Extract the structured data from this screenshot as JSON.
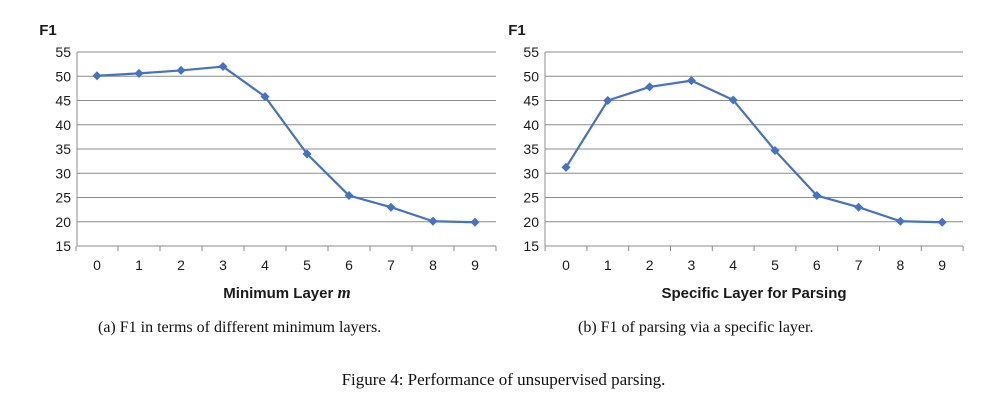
{
  "chart_data": [
    {
      "type": "line",
      "ylabel": "F1",
      "xlabel": "Minimum Layer",
      "xlabel_var": "m",
      "ylim": [
        15,
        55
      ],
      "yticks": [
        15,
        20,
        25,
        30,
        35,
        40,
        45,
        50,
        55
      ],
      "x": [
        0,
        1,
        2,
        3,
        4,
        5,
        6,
        7,
        8,
        9
      ],
      "series": [
        {
          "values": [
            50.1,
            50.6,
            51.2,
            52.0,
            45.8,
            34.0,
            25.4,
            23.0,
            20.1,
            19.9
          ]
        }
      ],
      "grid": true,
      "color": "#4472c4",
      "caption": "(a) F1 in terms of different minimum layers."
    },
    {
      "type": "line",
      "ylabel": "F1",
      "xlabel": "Specific Layer for Parsing",
      "ylim": [
        15,
        55
      ],
      "yticks": [
        15,
        20,
        25,
        30,
        35,
        40,
        45,
        50,
        55
      ],
      "x": [
        0,
        1,
        2,
        3,
        4,
        5,
        6,
        7,
        8,
        9
      ],
      "series": [
        {
          "values": [
            31.2,
            45.0,
            47.8,
            49.1,
            45.1,
            34.7,
            25.4,
            23.0,
            20.1,
            19.9
          ]
        }
      ],
      "grid": true,
      "color": "#4472c4",
      "caption": "(b) F1 of parsing via a specific layer."
    }
  ],
  "figure_caption": "Figure 4: Performance of unsupervised parsing."
}
